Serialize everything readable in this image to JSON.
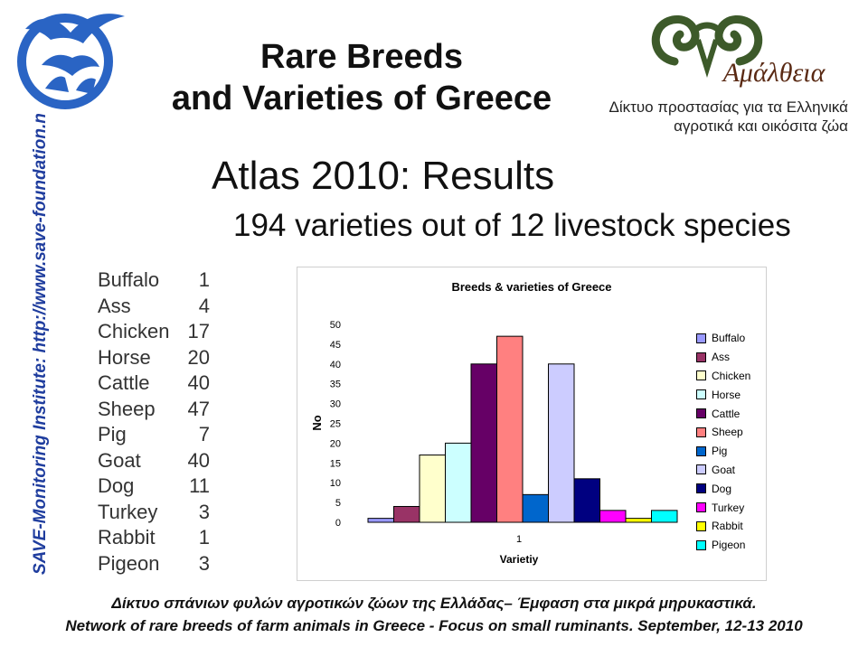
{
  "sidebar": {
    "text": "SAVE-Monitoring Institute: http://www.save-foundation.net"
  },
  "logo_right": {
    "text": "Αμάλθεια"
  },
  "header": {
    "title_line1": "Rare Breeds",
    "title_line2": "and Varieties of Greece",
    "greek_line1": "Δίκτυο προστασίας για τα Ελληνικά",
    "greek_line2": "αγροτικά και οικόσιτα ζώα"
  },
  "subtitle": "Atlas 2010: Results",
  "subtitle2": "194 varieties out of 12 livestock species",
  "species_list": [
    {
      "name": "Buffalo",
      "count": "1"
    },
    {
      "name": "Ass",
      "count": "4"
    },
    {
      "name": "Chicken",
      "count": "17"
    },
    {
      "name": "Horse",
      "count": "20"
    },
    {
      "name": "Cattle",
      "count": "40"
    },
    {
      "name": "Sheep",
      "count": "47"
    },
    {
      "name": "Pig",
      "count": "7"
    },
    {
      "name": "Goat",
      "count": "40"
    },
    {
      "name": "Dog",
      "count": "11"
    },
    {
      "name": "Turkey",
      "count": "3"
    },
    {
      "name": "Rabbit",
      "count": "1"
    },
    {
      "name": "Pigeon",
      "count": "3"
    }
  ],
  "chart_data": {
    "type": "bar",
    "title": "Breeds & varieties of Greece",
    "xlabel": "Varietiy",
    "ylabel": "No",
    "categories": [
      "1"
    ],
    "ylim": [
      0,
      50
    ],
    "yticks": [
      0,
      5,
      10,
      15,
      20,
      25,
      30,
      35,
      40,
      45,
      50
    ],
    "grid": false,
    "legend_position": "right",
    "series": [
      {
        "name": "Buffalo",
        "values": [
          1
        ],
        "color": "#9999ff"
      },
      {
        "name": "Ass",
        "values": [
          4
        ],
        "color": "#993366"
      },
      {
        "name": "Chicken",
        "values": [
          17
        ],
        "color": "#ffffcc"
      },
      {
        "name": "Horse",
        "values": [
          20
        ],
        "color": "#ccffff"
      },
      {
        "name": "Cattle",
        "values": [
          40
        ],
        "color": "#660066"
      },
      {
        "name": "Sheep",
        "values": [
          47
        ],
        "color": "#ff8080"
      },
      {
        "name": "Pig",
        "values": [
          7
        ],
        "color": "#0066cc"
      },
      {
        "name": "Goat",
        "values": [
          40
        ],
        "color": "#ccccff"
      },
      {
        "name": "Dog",
        "values": [
          11
        ],
        "color": "#000080"
      },
      {
        "name": "Turkey",
        "values": [
          3
        ],
        "color": "#ff00ff"
      },
      {
        "name": "Rabbit",
        "values": [
          1
        ],
        "color": "#ffff00"
      },
      {
        "name": "Pigeon",
        "values": [
          3
        ],
        "color": "#00ffff"
      }
    ]
  },
  "footer": {
    "line1": "Δίκτυο σπάνιων φυλών αγροτικών ζώων της Ελλάδας– Έμφαση στα μικρά μηρυκαστικά.",
    "line2": "Network of rare breeds of farm animals in Greece - Focus on small ruminants. September, 12-13 2010"
  }
}
